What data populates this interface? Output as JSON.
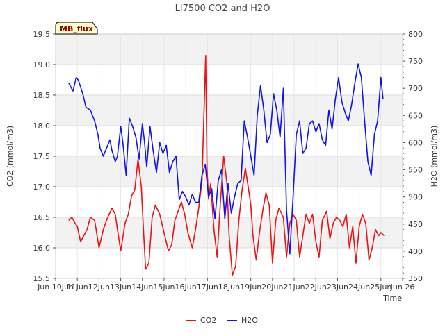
{
  "chart_data": {
    "type": "line",
    "title": "LI7500 CO2 and H2O",
    "xlabel": "Time",
    "ylabel_left": "CO2 (mmol/m3)",
    "ylabel_right": "H2O (mmol/m3)",
    "badge": "MB_flux",
    "xlim": [
      10,
      26
    ],
    "ylim_left": [
      15.5,
      19.5
    ],
    "ylim_right": [
      350,
      800
    ],
    "x_ticks": [
      {
        "day": 10,
        "label": "Jun 10Jun"
      },
      {
        "day": 11,
        "label": "11Jun"
      },
      {
        "day": 12,
        "label": "12Jun"
      },
      {
        "day": 13,
        "label": "13Jun"
      },
      {
        "day": 14,
        "label": "14Jun"
      },
      {
        "day": 15,
        "label": "15Jun"
      },
      {
        "day": 16,
        "label": "16Jun"
      },
      {
        "day": 17,
        "label": "17Jun"
      },
      {
        "day": 18,
        "label": "18Jun"
      },
      {
        "day": 19,
        "label": "19Jun"
      },
      {
        "day": 20,
        "label": "20Jun"
      },
      {
        "day": 21,
        "label": "21Jun"
      },
      {
        "day": 22,
        "label": "22Jun"
      },
      {
        "day": 23,
        "label": "23Jun"
      },
      {
        "day": 24,
        "label": "24Jun"
      },
      {
        "day": 25,
        "label": "25Jun"
      },
      {
        "day": 26,
        "label": "Jun 26"
      }
    ],
    "y_ticks_left": [
      "15.5",
      "16.0",
      "16.5",
      "17.0",
      "17.5",
      "18.0",
      "18.5",
      "19.0",
      "19.5"
    ],
    "y_ticks_right": [
      "350",
      "400",
      "450",
      "500",
      "550",
      "600",
      "650",
      "700",
      "750",
      "800"
    ],
    "grid": true,
    "legend_position": "bottom-center",
    "series": [
      {
        "name": "CO2",
        "axis": "left",
        "color": "#ee1111",
        "x": [
          10.6,
          10.75,
          10.9,
          11.0,
          11.15,
          11.3,
          11.45,
          11.6,
          11.8,
          12.0,
          12.2,
          12.4,
          12.6,
          12.75,
          12.85,
          13.0,
          13.2,
          13.35,
          13.5,
          13.65,
          13.8,
          13.95,
          14.05,
          14.15,
          14.3,
          14.45,
          14.6,
          14.8,
          15.0,
          15.2,
          15.35,
          15.5,
          15.65,
          15.8,
          15.95,
          16.1,
          16.3,
          16.45,
          16.6,
          16.75,
          16.85,
          16.92,
          16.98,
          17.05,
          17.15,
          17.3,
          17.45,
          17.6,
          17.75,
          17.9,
          18.0,
          18.15,
          18.3,
          18.45,
          18.6,
          18.75,
          18.9,
          19.0,
          19.1,
          19.25,
          19.4,
          19.55,
          19.7,
          19.85,
          20.0,
          20.15,
          20.3,
          20.5,
          20.65,
          20.8,
          20.95,
          21.1,
          21.25,
          21.4,
          21.55,
          21.7,
          21.85,
          22.0,
          22.15,
          22.3,
          22.5,
          22.65,
          22.8,
          22.95,
          23.1,
          23.25,
          23.4,
          23.55,
          23.7,
          23.85,
          24.0,
          24.15,
          24.3,
          24.45,
          24.6,
          24.75,
          24.9,
          25.0,
          25.15
        ],
        "values": [
          16.45,
          16.5,
          16.4,
          16.35,
          16.1,
          16.2,
          16.3,
          16.5,
          16.45,
          16.0,
          16.3,
          16.5,
          16.65,
          16.55,
          16.3,
          15.95,
          16.4,
          16.55,
          16.85,
          16.95,
          17.45,
          17.0,
          16.3,
          15.65,
          15.75,
          16.5,
          16.7,
          16.55,
          16.25,
          15.95,
          16.05,
          16.45,
          16.6,
          16.75,
          16.55,
          16.25,
          16.0,
          16.3,
          16.65,
          17.1,
          18.3,
          19.15,
          17.3,
          16.8,
          17.05,
          16.3,
          15.85,
          16.75,
          17.5,
          17.05,
          16.2,
          15.55,
          15.7,
          16.45,
          16.95,
          17.3,
          16.95,
          16.7,
          16.2,
          15.8,
          16.25,
          16.6,
          16.9,
          16.7,
          15.75,
          16.45,
          16.65,
          16.5,
          15.85,
          16.4,
          16.55,
          16.45,
          15.85,
          16.2,
          16.55,
          16.4,
          16.55,
          16.1,
          15.85,
          16.45,
          16.6,
          16.15,
          16.4,
          16.5,
          16.45,
          16.35,
          16.55,
          16.0,
          16.35,
          15.75,
          16.35,
          16.55,
          16.4,
          15.8,
          16.0,
          16.3,
          16.2,
          16.25,
          16.2
        ]
      },
      {
        "name": "H2O",
        "axis": "right",
        "color": "#1111ee",
        "x": [
          10.6,
          10.8,
          10.95,
          11.05,
          11.25,
          11.4,
          11.6,
          11.8,
          11.95,
          12.05,
          12.2,
          12.35,
          12.5,
          12.6,
          12.75,
          12.85,
          13.0,
          13.1,
          13.25,
          13.4,
          13.55,
          13.7,
          13.85,
          14.0,
          14.1,
          14.2,
          14.35,
          14.5,
          14.65,
          14.8,
          14.95,
          15.1,
          15.25,
          15.4,
          15.55,
          15.7,
          15.85,
          16.0,
          16.15,
          16.3,
          16.45,
          16.6,
          16.75,
          16.9,
          17.05,
          17.2,
          17.35,
          17.5,
          17.65,
          17.8,
          17.95,
          18.1,
          18.25,
          18.4,
          18.55,
          18.7,
          18.85,
          19.0,
          19.15,
          19.3,
          19.45,
          19.6,
          19.75,
          19.9,
          20.05,
          20.2,
          20.35,
          20.5,
          20.65,
          20.8,
          20.95,
          21.1,
          21.25,
          21.4,
          21.55,
          21.7,
          21.85,
          22.0,
          22.15,
          22.3,
          22.45,
          22.6,
          22.75,
          22.9,
          23.05,
          23.2,
          23.35,
          23.5,
          23.65,
          23.8,
          23.95,
          24.1,
          24.25,
          24.4,
          24.55,
          24.7,
          24.85,
          25.0,
          25.1
        ],
        "values": [
          710,
          695,
          720,
          715,
          690,
          665,
          660,
          640,
          615,
          590,
          575,
          590,
          605,
          585,
          565,
          575,
          630,
          600,
          540,
          645,
          630,
          610,
          570,
          635,
          600,
          555,
          630,
          585,
          545,
          600,
          580,
          595,
          545,
          565,
          575,
          495,
          510,
          500,
          485,
          505,
          490,
          490,
          540,
          560,
          500,
          515,
          460,
          530,
          550,
          460,
          525,
          470,
          500,
          525,
          530,
          640,
          610,
          575,
          540,
          650,
          705,
          660,
          600,
          615,
          690,
          660,
          610,
          700,
          475,
          395,
          500,
          615,
          640,
          580,
          590,
          635,
          640,
          620,
          635,
          605,
          595,
          660,
          625,
          680,
          720,
          675,
          655,
          640,
          670,
          710,
          745,
          720,
          640,
          565,
          540,
          615,
          640,
          720,
          680
        ]
      }
    ]
  }
}
